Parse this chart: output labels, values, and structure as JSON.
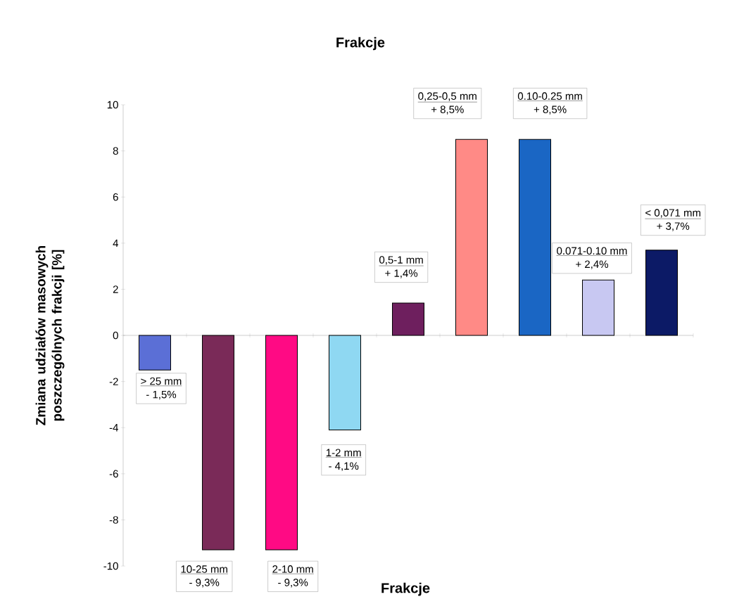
{
  "chart_data": {
    "type": "bar",
    "title": "Frakcje",
    "ylabel": "Zmiana udziałów masowych poszczególnych frakcji [%]",
    "categories": [
      null,
      null,
      null,
      null,
      null,
      null,
      null,
      null,
      null
    ],
    "annotations": [
      "> 25 mm",
      "10-25 mm",
      "2-10 mm",
      "1-2 mm",
      "0,5-1 mm",
      "0,25-0,5 mm",
      "0.10-0.25 mm",
      "0.071-0.10 mm",
      "< 0,071 mm",
      "Frakcje"
    ],
    "values": [
      -1.5,
      -9.3,
      -9.3,
      -4.1,
      1.4,
      8.5,
      8.5,
      2.4,
      3.7
    ],
    "value_labels": [
      "- 1,5%",
      "- 9,3%",
      "- 9,3%",
      "- 4,1%",
      "+ 1,4%",
      "+ 8,5%",
      "+ 8,5%",
      "+ 2,4%",
      "+ 3,7%"
    ],
    "colors": [
      "#5b6fd6",
      "#7a2a58",
      "#ff0a84",
      "#8fd8f2",
      "#6e1f5e",
      "#ff8a86",
      "#1a66c4",
      "#c8c8f2",
      "#0c1a66"
    ],
    "ylim": [
      -10,
      10
    ],
    "yticks": [
      -10,
      -8,
      -6,
      -4,
      -2,
      0,
      2,
      4,
      6,
      8,
      10
    ],
    "tick_labels": "y"
  }
}
